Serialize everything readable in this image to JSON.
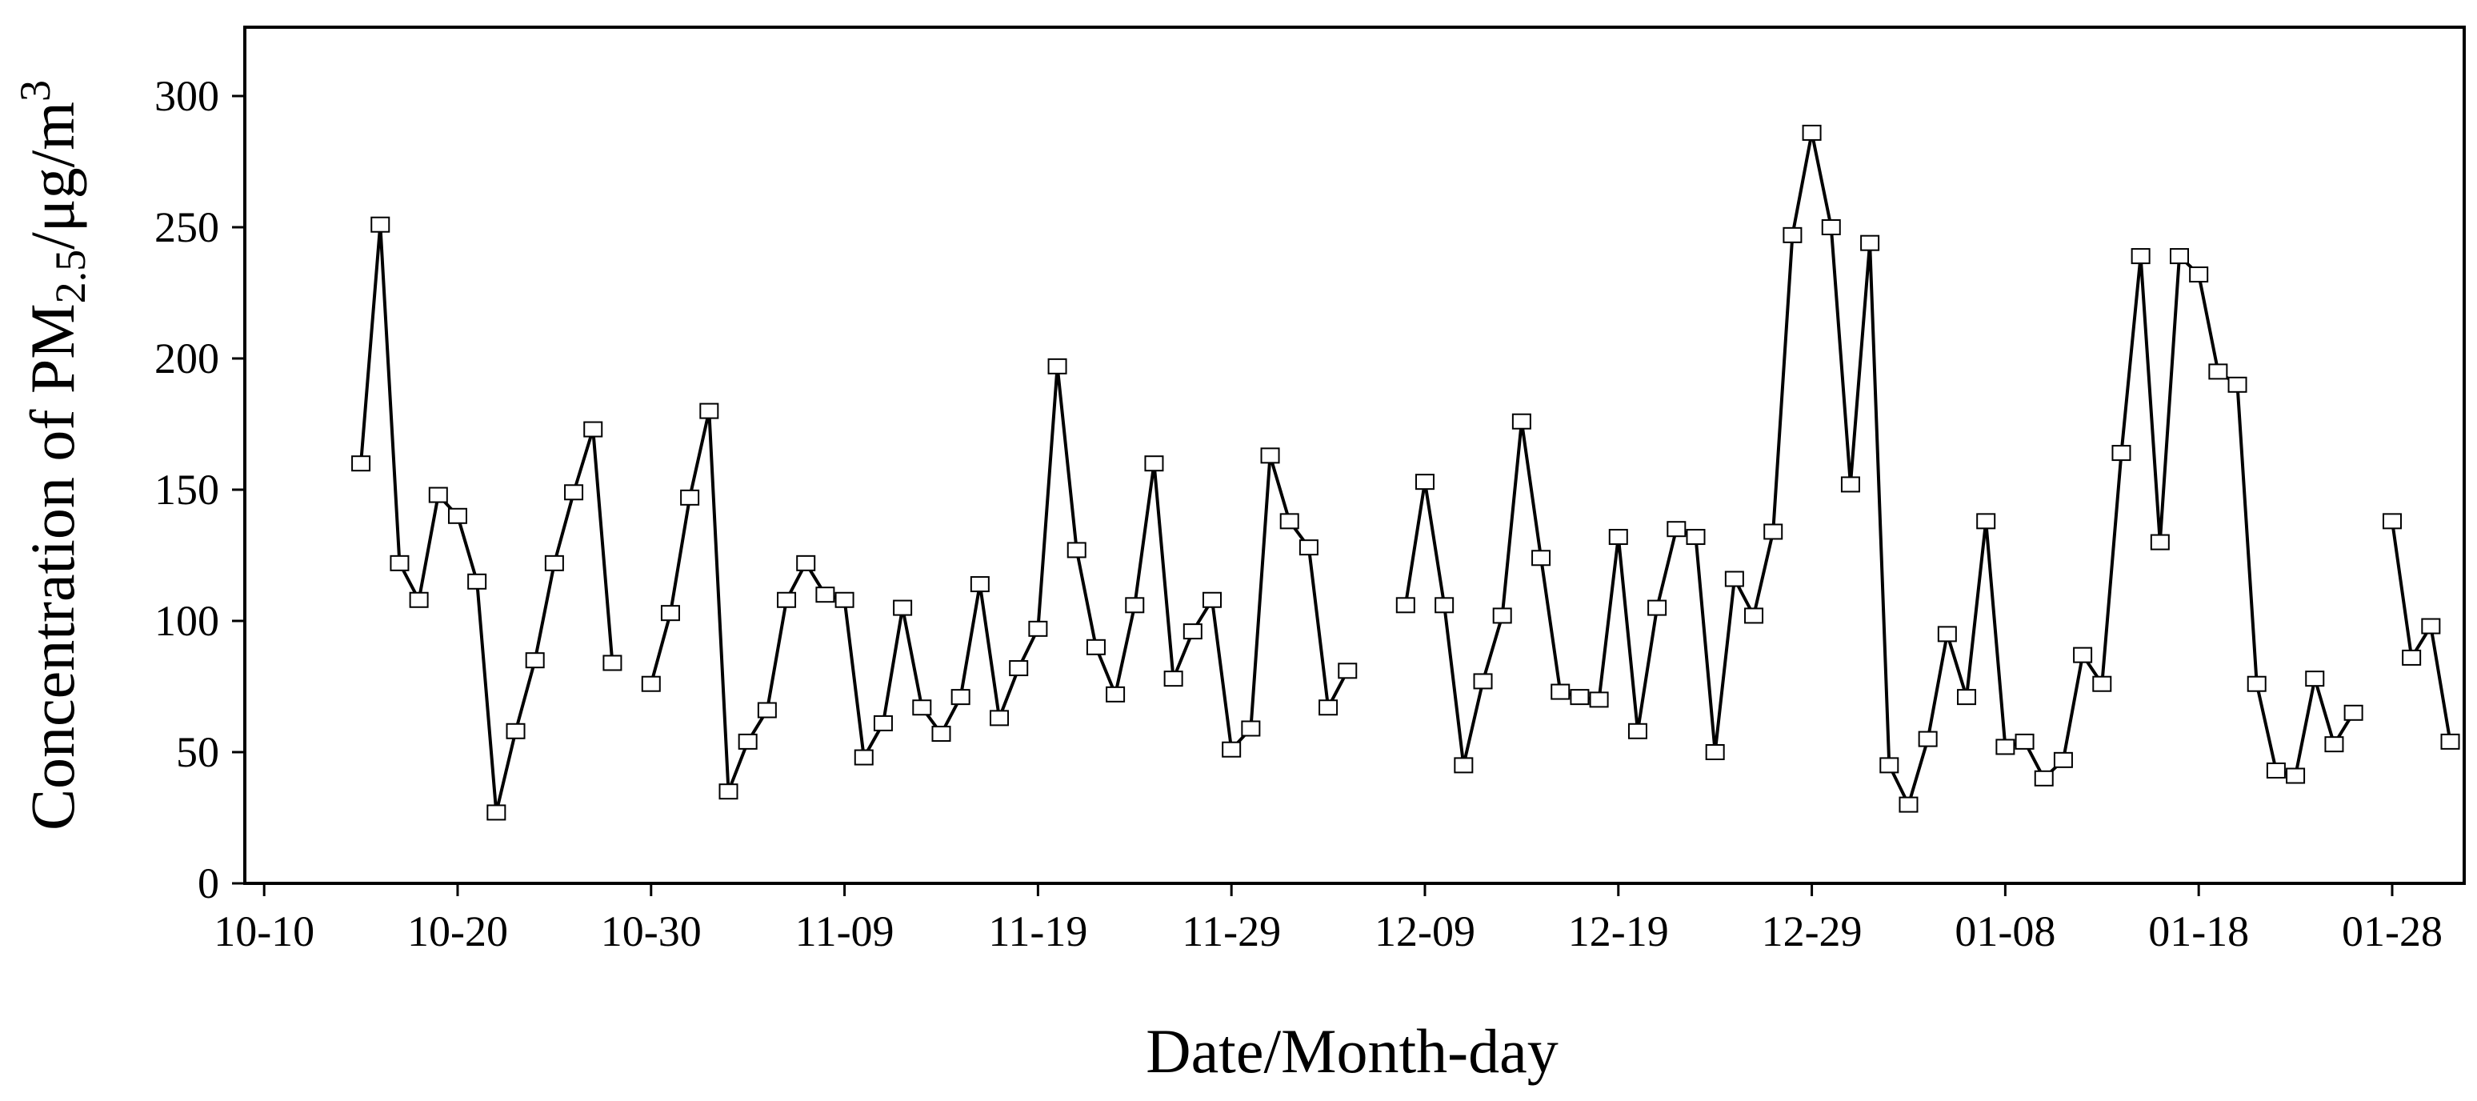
{
  "chart_data": {
    "type": "line",
    "title": "",
    "xlabel": "Date/Month-day",
    "ylabel_parts": {
      "main": "Concentration of PM",
      "sub": "2.5",
      "sep": "/μg/m",
      "sup": "3"
    },
    "ylim": [
      0,
      325
    ],
    "y_ticks": [
      0,
      50,
      100,
      150,
      200,
      250,
      300
    ],
    "x_ticks": [
      "10-10",
      "10-20",
      "10-30",
      "11-09",
      "11-19",
      "11-29",
      "12-09",
      "12-19",
      "12-29",
      "01-08",
      "01-18",
      "01-28"
    ],
    "xlim": [
      "10-10",
      "02-02"
    ],
    "grid": false,
    "legend": "none",
    "marker": "open-square",
    "line_color": "#000000",
    "series": [
      {
        "segments": [
          [
            [
              "10-15",
              160
            ],
            [
              "10-16",
              251
            ],
            [
              "10-17",
              122
            ],
            [
              "10-18",
              108
            ],
            [
              "10-19",
              148
            ],
            [
              "10-20",
              140
            ],
            [
              "10-21",
              115
            ],
            [
              "10-22",
              27
            ],
            [
              "10-23",
              58
            ],
            [
              "10-24",
              85
            ],
            [
              "10-25",
              122
            ],
            [
              "10-26",
              149
            ],
            [
              "10-27",
              173
            ],
            [
              "10-28",
              84
            ]
          ],
          [
            [
              "10-30",
              76
            ],
            [
              "10-31",
              103
            ],
            [
              "11-01",
              147
            ],
            [
              "11-02",
              180
            ],
            [
              "11-03",
              35
            ],
            [
              "11-04",
              54
            ],
            [
              "11-05",
              66
            ],
            [
              "11-06",
              108
            ],
            [
              "11-07",
              122
            ],
            [
              "11-08",
              110
            ],
            [
              "11-09",
              108
            ],
            [
              "11-10",
              48
            ],
            [
              "11-11",
              61
            ],
            [
              "11-12",
              105
            ],
            [
              "11-13",
              67
            ],
            [
              "11-14",
              57
            ],
            [
              "11-15",
              71
            ],
            [
              "11-16",
              114
            ],
            [
              "11-17",
              63
            ],
            [
              "11-18",
              82
            ],
            [
              "11-19",
              97
            ],
            [
              "11-20",
              197
            ],
            [
              "11-21",
              127
            ],
            [
              "11-22",
              90
            ],
            [
              "11-23",
              72
            ],
            [
              "11-24",
              106
            ],
            [
              "11-25",
              160
            ],
            [
              "11-26",
              78
            ],
            [
              "11-27",
              96
            ],
            [
              "11-28",
              108
            ],
            [
              "11-29",
              51
            ],
            [
              "11-30",
              59
            ],
            [
              "12-01",
              163
            ],
            [
              "12-02",
              138
            ],
            [
              "12-03",
              128
            ],
            [
              "12-04",
              67
            ],
            [
              "12-05",
              81
            ]
          ],
          [
            [
              "12-08",
              106
            ],
            [
              "12-09",
              153
            ],
            [
              "12-10",
              106
            ],
            [
              "12-11",
              45
            ],
            [
              "12-12",
              77
            ],
            [
              "12-13",
              102
            ],
            [
              "12-14",
              176
            ],
            [
              "12-15",
              124
            ],
            [
              "12-16",
              73
            ],
            [
              "12-17",
              71
            ],
            [
              "12-18",
              70
            ],
            [
              "12-19",
              132
            ],
            [
              "12-20",
              58
            ],
            [
              "12-21",
              105
            ],
            [
              "12-22",
              135
            ],
            [
              "12-23",
              132
            ],
            [
              "12-24",
              50
            ],
            [
              "12-25",
              116
            ],
            [
              "12-26",
              102
            ],
            [
              "12-27",
              134
            ],
            [
              "12-28",
              247
            ],
            [
              "12-29",
              286
            ],
            [
              "12-30",
              250
            ],
            [
              "12-31",
              152
            ],
            [
              "01-01",
              244
            ],
            [
              "01-02",
              45
            ],
            [
              "01-03",
              30
            ],
            [
              "01-04",
              55
            ],
            [
              "01-05",
              95
            ],
            [
              "01-06",
              71
            ],
            [
              "01-07",
              138
            ],
            [
              "01-08",
              52
            ],
            [
              "01-09",
              54
            ],
            [
              "01-10",
              40
            ],
            [
              "01-11",
              47
            ],
            [
              "01-12",
              87
            ],
            [
              "01-13",
              76
            ],
            [
              "01-14",
              164
            ],
            [
              "01-15",
              239
            ],
            [
              "01-16",
              130
            ],
            [
              "01-17",
              239
            ],
            [
              "01-18",
              232
            ],
            [
              "01-19",
              195
            ],
            [
              "01-20",
              190
            ],
            [
              "01-21",
              76
            ],
            [
              "01-22",
              43
            ],
            [
              "01-23",
              41
            ],
            [
              "01-24",
              78
            ],
            [
              "01-25",
              53
            ],
            [
              "01-26",
              65
            ]
          ],
          [
            [
              "01-28",
              138
            ],
            [
              "01-29",
              86
            ],
            [
              "01-30",
              98
            ],
            [
              "01-31",
              54
            ]
          ]
        ]
      }
    ]
  }
}
